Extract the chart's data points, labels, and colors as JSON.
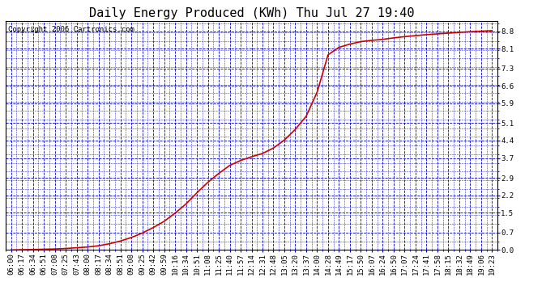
{
  "title": "Daily Energy Produced (KWh) Thu Jul 27 19:40",
  "copyright_text": "Copyright 2006 Cartronics.com",
  "line_color": "#cc0000",
  "bg_color": "#ffffff",
  "plot_bg_color": "#ffffff",
  "grid_color": "#0000cc",
  "tick_label_color": "#000000",
  "border_color": "#000000",
  "yticks": [
    0.0,
    0.7,
    1.5,
    2.2,
    2.9,
    3.7,
    4.4,
    5.1,
    5.9,
    6.6,
    7.3,
    8.1,
    8.8
  ],
  "ylim": [
    0.0,
    9.2
  ],
  "x_labels": [
    "06:00",
    "06:17",
    "06:34",
    "06:51",
    "07:08",
    "07:25",
    "07:43",
    "08:00",
    "08:17",
    "08:34",
    "08:51",
    "09:08",
    "09:25",
    "09:42",
    "09:59",
    "10:16",
    "10:34",
    "10:51",
    "11:08",
    "11:25",
    "11:40",
    "11:57",
    "12:14",
    "12:31",
    "12:48",
    "13:05",
    "13:20",
    "13:37",
    "14:00",
    "14:28",
    "14:49",
    "15:17",
    "15:50",
    "16:07",
    "16:24",
    "16:50",
    "17:07",
    "17:24",
    "17:41",
    "17:58",
    "18:15",
    "18:32",
    "18:49",
    "19:06",
    "19:23"
  ],
  "data_y": [
    0.0,
    0.01,
    0.02,
    0.03,
    0.04,
    0.06,
    0.09,
    0.12,
    0.17,
    0.25,
    0.36,
    0.5,
    0.68,
    0.9,
    1.15,
    1.48,
    1.85,
    2.3,
    2.72,
    3.08,
    3.4,
    3.6,
    3.75,
    3.88,
    4.1,
    4.42,
    4.85,
    5.38,
    6.35,
    7.85,
    8.15,
    8.28,
    8.38,
    8.43,
    8.47,
    8.53,
    8.58,
    8.62,
    8.66,
    8.69,
    8.72,
    8.75,
    8.78,
    8.8,
    8.82
  ],
  "title_fontsize": 11,
  "tick_fontsize": 6.5,
  "copyright_fontsize": 6.5,
  "line_width": 1.2
}
